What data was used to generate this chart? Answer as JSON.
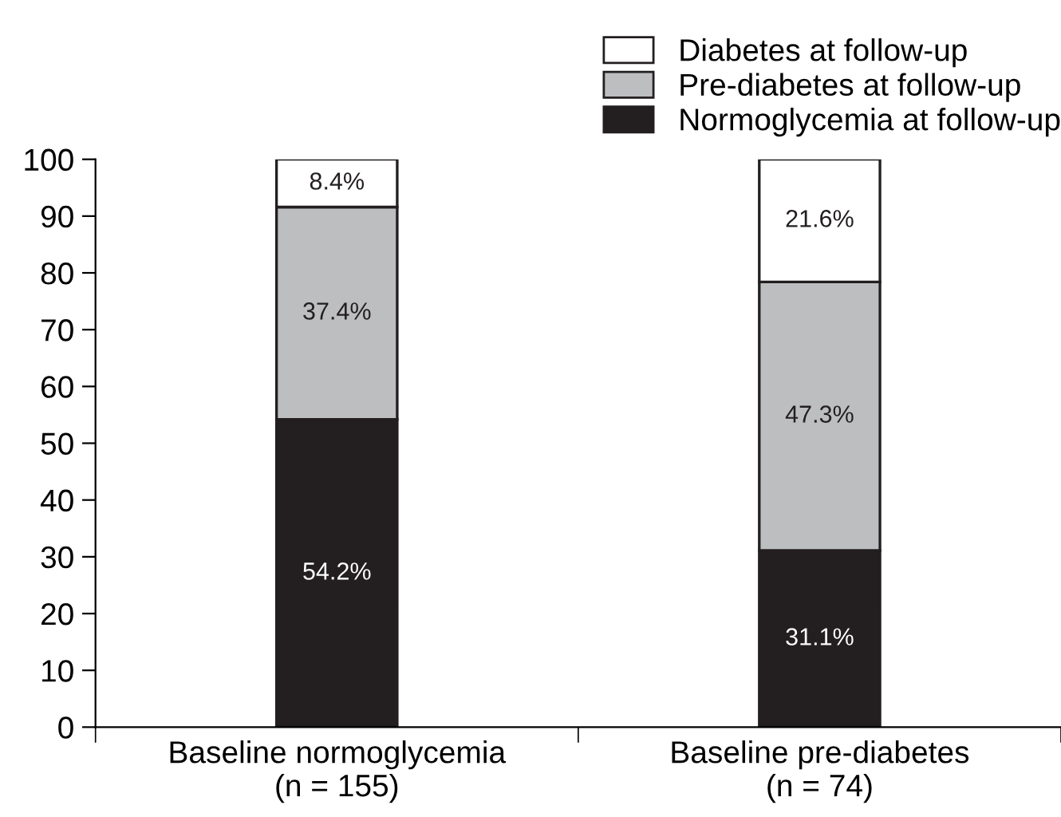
{
  "chart_data": {
    "type": "bar",
    "stacked": true,
    "categories": [
      "Baseline normoglycemia\n(n = 155)",
      "Baseline pre-diabetes\n(n = 74)"
    ],
    "series": [
      {
        "name": "Normoglycemia at follow-up",
        "color": "#231f20",
        "values": [
          54.2,
          31.1
        ],
        "value_labels": [
          "54.2%",
          "31.1%"
        ]
      },
      {
        "name": "Pre-diabetes at follow-up",
        "color": "#bcbec0",
        "values": [
          37.4,
          47.3
        ],
        "value_labels": [
          "37.4%",
          "47.3%"
        ]
      },
      {
        "name": "Diabetes at follow-up",
        "color": "#ffffff",
        "values": [
          8.4,
          21.6
        ],
        "value_labels": [
          "8.4%",
          "21.6%"
        ]
      }
    ],
    "ylim": [
      0,
      100
    ],
    "yticks": [
      0,
      10,
      20,
      30,
      40,
      50,
      60,
      70,
      80,
      90,
      100
    ],
    "grid": false,
    "legend": "top right"
  }
}
